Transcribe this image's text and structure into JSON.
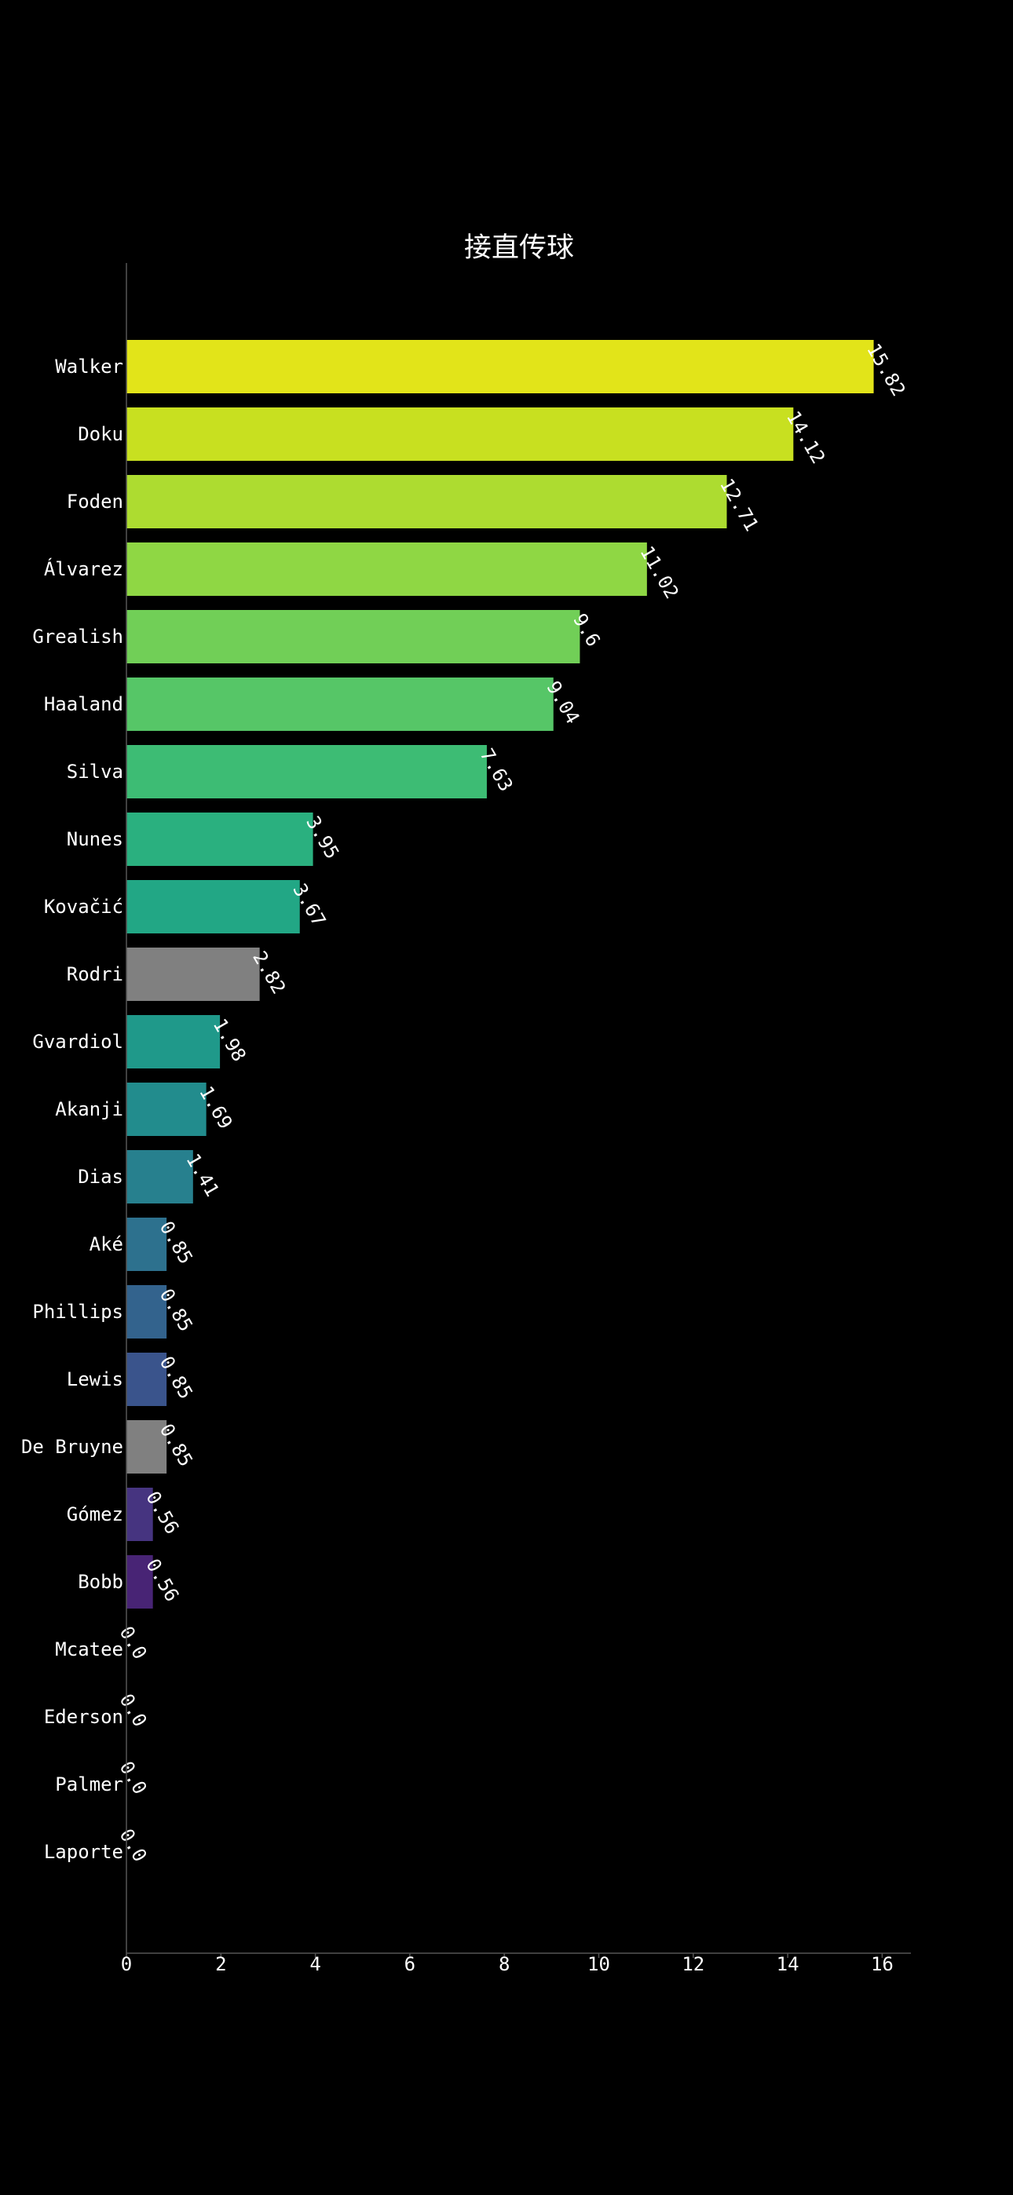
{
  "chart_data": {
    "type": "bar",
    "orientation": "horizontal",
    "title": "接直传球",
    "xlabel": "",
    "ylabel": "",
    "xlim": [
      0,
      16.6
    ],
    "xticks": [
      0,
      2,
      4,
      6,
      8,
      10,
      12,
      14,
      16
    ],
    "grid": false,
    "categories": [
      "Walker",
      "Doku",
      "Foden",
      "Álvarez",
      "Grealish",
      "Haaland",
      "Silva",
      "Nunes",
      "Kovačić",
      "Rodri",
      "Gvardiol",
      "Akanji",
      "Dias",
      "Aké",
      "Phillips",
      "Lewis",
      "De Bruyne",
      "Gómez",
      "Bobb",
      "Mcatee",
      "Ederson",
      "Palmer",
      "Laporte"
    ],
    "values": [
      15.82,
      14.12,
      12.71,
      11.02,
      9.6,
      9.04,
      7.63,
      3.95,
      3.67,
      2.82,
      1.98,
      1.69,
      1.41,
      0.85,
      0.85,
      0.85,
      0.85,
      0.56,
      0.56,
      0.0,
      0.0,
      0.0,
      0.0
    ],
    "value_labels": [
      "15.82",
      "14.12",
      "12.71",
      "11.02",
      "9.6",
      "9.04",
      "7.63",
      "3.95",
      "3.67",
      "2.82",
      "1.98",
      "1.69",
      "1.41",
      "0.85",
      "0.85",
      "0.85",
      "0.85",
      "0.56",
      "0.56",
      "0.0",
      "0.0",
      "0.0",
      "0.0"
    ],
    "colors": [
      "#e2e419",
      "#c8e020",
      "#addc30",
      "#8fd744",
      "#71cf57",
      "#56c667",
      "#3dbc74",
      "#2ab07f",
      "#22a785",
      "#808080",
      "#1f998a",
      "#228c8d",
      "#27808e",
      "#2d718e",
      "#33638d",
      "#3a548c",
      "#808080",
      "#463480",
      "#482475",
      "#481467",
      "#440154",
      "#440154",
      "#440154"
    ],
    "background": "#000000",
    "text_color": "#ffffff",
    "axis_color": "#555555"
  }
}
